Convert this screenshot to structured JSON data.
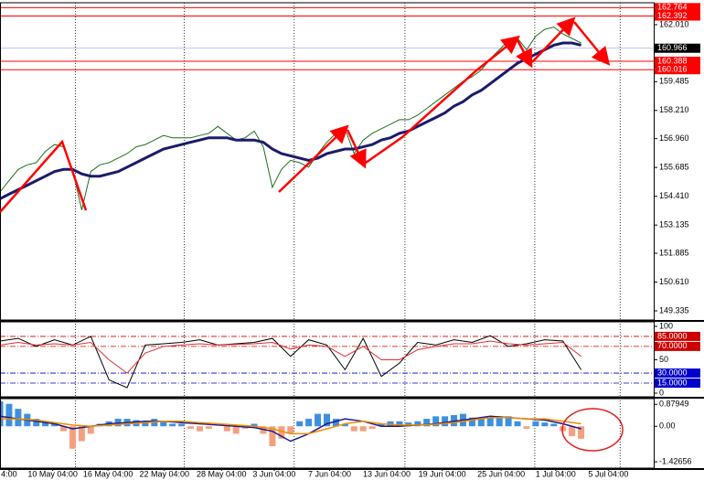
{
  "chart_data": [
    {
      "type": "line",
      "x": [
        0,
        1,
        2,
        3,
        4,
        5,
        6,
        7,
        8,
        9,
        10,
        11,
        12,
        13,
        14,
        15,
        16,
        17,
        18,
        19,
        20,
        21,
        22,
        23,
        24,
        25,
        26,
        27,
        28,
        29,
        30,
        31,
        32,
        33,
        34,
        35,
        36,
        37,
        38,
        39,
        40,
        41,
        42,
        43,
        44,
        45,
        46,
        47,
        48,
        49,
        50,
        51,
        52,
        53,
        54,
        55,
        56,
        57,
        58,
        59,
        60,
        61,
        62,
        63,
        64
      ],
      "xlim": [
        0,
        72
      ],
      "ylim": [
        148.93,
        162.98
      ],
      "yticks": [
        {
          "value": 162.01,
          "label": "162.010"
        },
        159.485,
        {
          "value": 158.21,
          "label": "158.210"
        },
        {
          "value": 156.96,
          "label": "156.960"
        },
        155.685,
        {
          "value": 154.41,
          "label": "154.410"
        },
        153.135,
        151.885,
        {
          "value": 150.61,
          "label": "150.610"
        },
        149.335
      ],
      "xgrid": [
        8.3,
        20.3,
        32.4,
        44.6,
        58.9,
        68.3
      ],
      "level_color": "#ff0000",
      "levels": [
        162.764,
        162.392,
        160.388,
        160.016
      ],
      "current": {
        "value": 160.966,
        "color": "#000000",
        "line_color": "#9fb4e8"
      },
      "series": [
        {
          "color": "#1f6f1f",
          "width": 1,
          "values": [
            154.6,
            155.1,
            155.6,
            155.8,
            155.9,
            156.4,
            156.7,
            156.6,
            155.6,
            153.8,
            155.5,
            155.8,
            155.9,
            156.1,
            156.3,
            156.6,
            156.7,
            156.9,
            157.1,
            157.0,
            157.0,
            157.0,
            157.1,
            157.2,
            157.5,
            157.2,
            156.9,
            157.0,
            157.3,
            156.6,
            154.8,
            155.6,
            156.0,
            155.9,
            155.7,
            156.3,
            156.8,
            157.2,
            157.4,
            156.3,
            156.9,
            157.2,
            157.4,
            157.6,
            157.8,
            157.8,
            158.0,
            158.3,
            158.6,
            158.9,
            159.2,
            159.5,
            159.7,
            160.0,
            160.5,
            160.9,
            161.3,
            161.4,
            160.9,
            161.5,
            161.8,
            161.9,
            161.6,
            161.4,
            161.2
          ]
        },
        {
          "color": "#1b1b6b",
          "width": 3,
          "values": [
            154.3,
            154.5,
            154.7,
            154.9,
            155.1,
            155.3,
            155.5,
            155.6,
            155.6,
            155.4,
            155.3,
            155.3,
            155.4,
            155.5,
            155.7,
            155.9,
            156.1,
            156.3,
            156.5,
            156.6,
            156.7,
            156.8,
            156.9,
            157.0,
            157.0,
            157.0,
            156.9,
            156.9,
            156.9,
            156.8,
            156.5,
            156.3,
            156.2,
            156.1,
            156.0,
            156.1,
            156.3,
            156.4,
            156.5,
            156.5,
            156.6,
            156.7,
            156.9,
            157.0,
            157.2,
            157.3,
            157.5,
            157.7,
            157.9,
            158.1,
            158.4,
            158.6,
            158.9,
            159.1,
            159.4,
            159.7,
            160.0,
            160.3,
            160.5,
            160.7,
            160.9,
            161.1,
            161.2,
            161.2,
            161.1
          ]
        }
      ]
    },
    {
      "type": "line",
      "xlim": [
        0,
        72
      ],
      "ylim": [
        -5.5,
        106.8
      ],
      "yticks": [
        100,
        50,
        0
      ],
      "levels": [
        {
          "value": 85,
          "label": "85.0000",
          "color": "#cc0000"
        },
        {
          "value": 70,
          "label": "70.0000",
          "color": "#cc0000"
        },
        {
          "value": 30,
          "label": "30.0000",
          "color": "#0000cc"
        },
        {
          "value": 15,
          "label": "15.0000",
          "color": "#0000cc"
        }
      ],
      "series": [
        {
          "color": "#000000",
          "width": 1,
          "x": [
            0,
            2,
            4,
            6,
            8,
            10,
            12,
            14,
            16,
            18,
            20,
            22,
            24,
            26,
            28,
            30,
            32,
            34,
            36,
            38,
            40,
            42,
            44,
            46,
            48,
            50,
            52,
            54,
            56,
            58,
            60,
            62,
            64
          ],
          "values": [
            78,
            82,
            70,
            80,
            72,
            85,
            20,
            8,
            72,
            74,
            76,
            80,
            72,
            74,
            76,
            82,
            55,
            80,
            72,
            35,
            82,
            25,
            45,
            76,
            72,
            80,
            76,
            86,
            70,
            74,
            80,
            78,
            35
          ]
        },
        {
          "color": "#e03030",
          "width": 1,
          "x": [
            0,
            2,
            4,
            6,
            8,
            10,
            12,
            14,
            16,
            18,
            20,
            22,
            24,
            26,
            28,
            30,
            32,
            34,
            36,
            38,
            40,
            42,
            44,
            46,
            48,
            50,
            52,
            54,
            56,
            58,
            60,
            62,
            64
          ],
          "values": [
            72,
            76,
            72,
            74,
            72,
            76,
            50,
            30,
            60,
            70,
            72,
            74,
            72,
            73,
            74,
            76,
            66,
            72,
            70,
            55,
            70,
            50,
            50,
            65,
            70,
            74,
            74,
            78,
            74,
            72,
            74,
            76,
            55
          ]
        }
      ]
    },
    {
      "type": "bar",
      "x": [
        0,
        1,
        2,
        3,
        4,
        5,
        6,
        7,
        8,
        9,
        10,
        11,
        12,
        13,
        14,
        15,
        16,
        17,
        18,
        19,
        20,
        21,
        22,
        23,
        24,
        25,
        26,
        27,
        28,
        29,
        30,
        31,
        32,
        33,
        34,
        35,
        36,
        37,
        38,
        39,
        40,
        41,
        42,
        43,
        44,
        45,
        46,
        47,
        48,
        49,
        50,
        51,
        52,
        53,
        54,
        55,
        56,
        57,
        58,
        59,
        60,
        61,
        62,
        63,
        64
      ],
      "xlim": [
        0,
        72
      ],
      "ylim": [
        -1.68,
        1.11
      ],
      "yticks": [
        0.87949,
        {
          "value": 0,
          "label": "0.00"
        },
        -1.42656
      ],
      "xticks": [
        {
          "value": 1,
          "label": "4:00"
        },
        {
          "value": 5.8,
          "label": "10 May 04:00"
        },
        {
          "value": 11.9,
          "label": "16 May 04:00"
        },
        {
          "value": 18.1,
          "label": "22 May 04:00"
        },
        {
          "value": 24.4,
          "label": "28 May 04:00"
        },
        {
          "value": 30.2,
          "label": "3 Jun 04:00"
        },
        {
          "value": 36.3,
          "label": "7 Jun 04:00"
        },
        {
          "value": 42.6,
          "label": "13 Jun 04:00"
        },
        {
          "value": 48.7,
          "label": "19 Jun 04:00"
        },
        {
          "value": 55.2,
          "label": "25 Jun 04:00"
        },
        {
          "value": 61.2,
          "label": "1 Jul 04:00"
        },
        {
          "value": 67,
          "label": "5 Jul 04:00"
        }
      ],
      "series": [
        {
          "type": "bar",
          "color": "#3d8fe0",
          "negative_color": "#f4a07e",
          "values": [
            1.0,
            0.9,
            0.7,
            0.5,
            0.3,
            0.2,
            0.1,
            -0.2,
            -0.9,
            -0.6,
            -0.3,
            0.1,
            0.2,
            0.3,
            0.3,
            0.25,
            0.2,
            0.3,
            0.2,
            0.1,
            0.1,
            -0.1,
            -0.2,
            -0.1,
            0.0,
            -0.2,
            -0.3,
            -0.1,
            0.1,
            -0.3,
            -0.8,
            -0.5,
            -0.3,
            0.2,
            0.3,
            0.5,
            0.5,
            0.3,
            0.1,
            -0.2,
            -0.2,
            -0.1,
            0.1,
            0.2,
            0.2,
            0.15,
            0.2,
            0.3,
            0.4,
            0.4,
            0.45,
            0.5,
            0.35,
            0.3,
            0.35,
            0.4,
            0.4,
            0.2,
            -0.1,
            0.2,
            0.15,
            0.1,
            -0.2,
            -0.4,
            -0.5
          ]
        },
        {
          "type": "line",
          "color": "#1b1b8b",
          "width": 1.5,
          "x": [
            0,
            2,
            4,
            6,
            8,
            10,
            12,
            14,
            16,
            18,
            20,
            22,
            24,
            26,
            28,
            30,
            32,
            34,
            36,
            38,
            40,
            42,
            44,
            46,
            48,
            50,
            52,
            54,
            56,
            58,
            60,
            62,
            64
          ],
          "values": [
            0.4,
            0.3,
            0.2,
            0.1,
            -0.1,
            0.0,
            0.1,
            0.15,
            0.2,
            0.2,
            0.15,
            0.1,
            0.05,
            0.0,
            -0.05,
            -0.2,
            -0.6,
            -0.3,
            0.1,
            0.3,
            0.2,
            0.0,
            0.0,
            0.05,
            0.1,
            0.2,
            0.3,
            0.4,
            0.35,
            0.3,
            0.25,
            0.1,
            -0.1
          ]
        },
        {
          "type": "line",
          "color": "#f08c00",
          "width": 1.5,
          "x": [
            0,
            2,
            4,
            6,
            8,
            10,
            12,
            14,
            16,
            18,
            20,
            22,
            24,
            26,
            28,
            30,
            32,
            34,
            36,
            38,
            40,
            42,
            44,
            46,
            48,
            50,
            52,
            54,
            56,
            58,
            60,
            62,
            64
          ],
          "values": [
            0.3,
            0.3,
            0.25,
            0.15,
            0.05,
            0.0,
            0.05,
            0.1,
            0.15,
            0.2,
            0.2,
            0.15,
            0.1,
            0.05,
            0.0,
            -0.1,
            -0.3,
            -0.3,
            -0.1,
            0.1,
            0.2,
            0.1,
            0.05,
            0.05,
            0.08,
            0.15,
            0.25,
            0.35,
            0.35,
            0.3,
            0.3,
            0.2,
            0.1
          ]
        }
      ]
    }
  ]
}
